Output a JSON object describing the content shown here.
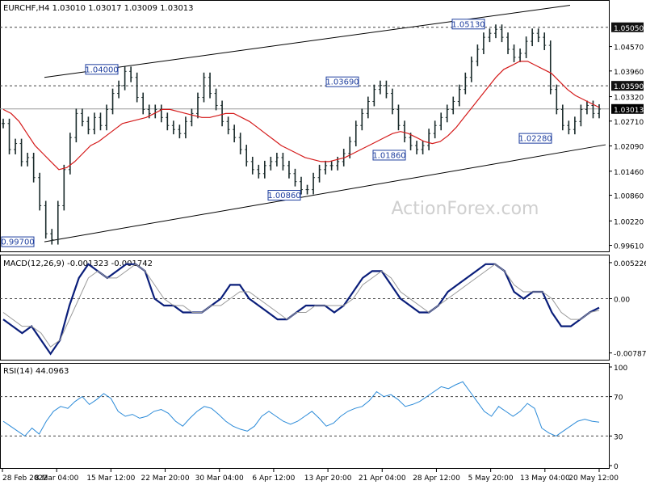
{
  "watermark": "ActionForex.com",
  "chart_data": {
    "type": "candlestick",
    "price_pane": {
      "header": "EURCHF,H4  1.03010 1.03017 1.03009 1.03013",
      "y_axis_ticks": [
        "1.05050",
        "1.04570",
        "1.03960",
        "1.03590",
        "1.03320",
        "1.03013",
        "1.02710",
        "1.02090",
        "1.01460",
        "1.00860",
        "1.00220",
        "0.99610"
      ],
      "ylim": [
        0.9952,
        1.0565
      ],
      "current_price": "1.03013",
      "horizontal_levels": [
        "1.05050",
        "1.03590",
        "1.03013"
      ],
      "annotations": [
        {
          "label": "0.99700",
          "value": 0.997
        },
        {
          "label": "1.04000",
          "value": 1.04
        },
        {
          "label": "1.00860",
          "value": 1.0086
        },
        {
          "label": "1.03690",
          "value": 1.0369
        },
        {
          "label": "1.01860",
          "value": 1.0186
        },
        {
          "label": "1.05130",
          "value": 1.0513
        },
        {
          "label": "1.02280",
          "value": 1.0228
        }
      ],
      "series": [
        {
          "name": "price",
          "values": [
            1.0265,
            1.02,
            1.0215,
            1.017,
            1.018,
            1.013,
            1.006,
            0.999,
            0.9975,
            1.006,
            1.015,
            1.023,
            1.029,
            1.027,
            1.025,
            1.028,
            1.026,
            1.03,
            1.034,
            1.036,
            1.0395,
            1.038,
            1.033,
            1.03,
            1.029,
            1.03,
            1.028,
            1.026,
            1.025,
            1.024,
            1.027,
            1.029,
            1.033,
            1.038,
            1.034,
            1.031,
            1.027,
            1.025,
            1.023,
            1.02,
            1.017,
            1.015,
            1.014,
            1.016,
            1.017,
            1.018,
            1.016,
            1.014,
            1.012,
            1.01,
            1.01,
            1.013,
            1.015,
            1.016,
            1.016,
            1.017,
            1.019,
            1.022,
            1.026,
            1.029,
            1.032,
            1.035,
            1.036,
            1.034,
            1.03,
            1.026,
            1.023,
            1.021,
            1.02,
            1.021,
            1.024,
            1.026,
            1.028,
            1.03,
            1.032,
            1.035,
            1.038,
            1.042,
            1.045,
            1.048,
            1.049,
            1.05,
            1.048,
            1.045,
            1.043,
            1.044,
            1.047,
            1.049,
            1.048,
            1.046,
            1.035,
            1.03,
            1.026,
            1.025,
            1.027,
            1.03,
            1.031,
            1.029,
            1.0301
          ]
        },
        {
          "name": "moving-average",
          "values": [
            1.03,
            1.029,
            1.027,
            1.024,
            1.021,
            1.019,
            1.017,
            1.015,
            1.0155,
            1.017,
            1.019,
            1.021,
            1.022,
            1.0235,
            1.025,
            1.0265,
            1.027,
            1.0275,
            1.028,
            1.029,
            1.03,
            1.03,
            1.0295,
            1.029,
            1.0285,
            1.028,
            1.028,
            1.0285,
            1.029,
            1.029,
            1.028,
            1.027,
            1.0255,
            1.024,
            1.0225,
            1.021,
            1.02,
            1.019,
            1.018,
            1.0175,
            1.017,
            1.017,
            1.0175,
            1.018,
            1.019,
            1.02,
            1.021,
            1.022,
            1.023,
            1.024,
            1.0245,
            1.024,
            1.023,
            1.022,
            1.0215,
            1.022,
            1.0235,
            1.0255,
            1.028,
            1.0305,
            1.033,
            1.0355,
            1.038,
            1.04,
            1.041,
            1.042,
            1.042,
            1.041,
            1.04,
            1.039,
            1.037,
            1.035,
            1.0335,
            1.0325,
            1.0315,
            1.0305
          ]
        }
      ]
    },
    "macd_pane": {
      "header": "MACD(12,26,9) -0.001323 -0.001742",
      "y_axis_ticks": [
        "0.005226",
        "0.00",
        "-0.007873"
      ],
      "ylim": [
        -0.0085,
        0.0058
      ],
      "series": [
        {
          "name": "macd",
          "values": [
            -0.003,
            -0.004,
            -0.005,
            -0.004,
            -0.006,
            -0.008,
            -0.006,
            -0.001,
            0.003,
            0.005,
            0.004,
            0.003,
            0.004,
            0.005,
            0.005,
            0.004,
            0.0,
            -0.001,
            -0.001,
            -0.002,
            -0.002,
            -0.002,
            -0.001,
            0.0,
            0.002,
            0.002,
            0.0,
            -0.001,
            -0.002,
            -0.003,
            -0.003,
            -0.002,
            -0.001,
            -0.001,
            -0.001,
            -0.002,
            -0.001,
            0.001,
            0.003,
            0.004,
            0.004,
            0.002,
            0.0,
            -0.001,
            -0.002,
            -0.002,
            -0.001,
            0.001,
            0.002,
            0.003,
            0.004,
            0.005,
            0.005,
            0.004,
            0.001,
            0.0,
            0.001,
            0.001,
            -0.002,
            -0.004,
            -0.004,
            -0.003,
            -0.002,
            -0.0013
          ]
        },
        {
          "name": "signal",
          "values": [
            -0.002,
            -0.003,
            -0.004,
            -0.004,
            -0.005,
            -0.007,
            -0.006,
            -0.003,
            0.0,
            0.003,
            0.004,
            0.003,
            0.003,
            0.004,
            0.005,
            0.004,
            0.002,
            0.0,
            -0.001,
            -0.001,
            -0.002,
            -0.002,
            -0.001,
            -0.001,
            0.0,
            0.001,
            0.001,
            0.0,
            -0.001,
            -0.002,
            -0.003,
            -0.002,
            -0.002,
            -0.001,
            -0.001,
            -0.001,
            -0.001,
            0.0,
            0.002,
            0.003,
            0.004,
            0.003,
            0.001,
            0.0,
            -0.001,
            -0.002,
            -0.001,
            0.0,
            0.001,
            0.002,
            0.003,
            0.004,
            0.005,
            0.004,
            0.002,
            0.001,
            0.001,
            0.001,
            0.0,
            -0.002,
            -0.003,
            -0.003,
            -0.002,
            -0.0017
          ]
        }
      ]
    },
    "rsi_pane": {
      "header": "RSI(14) 44.0963",
      "y_axis_ticks": [
        "100",
        "70",
        "30",
        "0"
      ],
      "ylim": [
        0,
        100
      ],
      "levels": [
        70,
        30
      ],
      "series": [
        {
          "name": "rsi",
          "values": [
            45,
            40,
            35,
            30,
            38,
            32,
            45,
            55,
            60,
            58,
            65,
            70,
            62,
            67,
            73,
            68,
            55,
            50,
            52,
            48,
            50,
            55,
            57,
            53,
            45,
            40,
            48,
            55,
            60,
            58,
            52,
            45,
            40,
            37,
            35,
            40,
            50,
            55,
            50,
            45,
            42,
            45,
            50,
            55,
            48,
            40,
            43,
            50,
            55,
            58,
            60,
            66,
            75,
            70,
            72,
            67,
            60,
            62,
            65,
            70,
            75,
            80,
            78,
            82,
            85,
            75,
            65,
            55,
            50,
            60,
            55,
            50,
            55,
            63,
            58,
            38,
            33,
            30,
            35,
            40,
            45,
            47,
            45,
            44
          ]
        }
      ]
    },
    "x_axis_labels": [
      "28 Feb 2022",
      "8 Mar 04:00",
      "15 Mar 12:00",
      "22 Mar 20:00",
      "30 Mar 04:00",
      "6 Apr 12:00",
      "13 Apr 20:00",
      "21 Apr 04:00",
      "28 Apr 12:00",
      "5 May 20:00",
      "13 May 04:00",
      "20 May 12:00"
    ]
  }
}
